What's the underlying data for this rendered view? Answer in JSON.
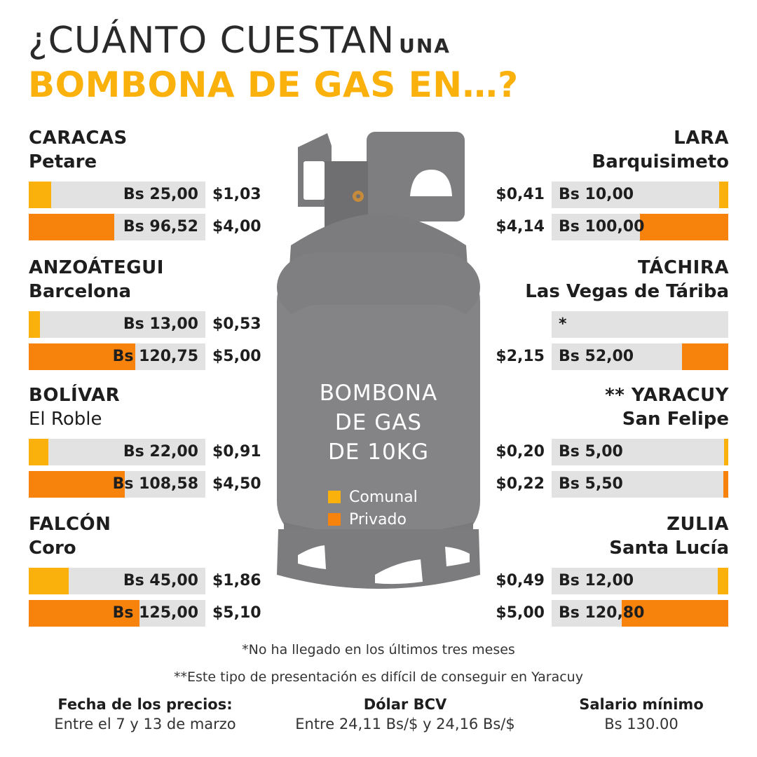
{
  "title": {
    "line1_main": "¿CUÁNTO CUESTAN",
    "line1_small": "UNA",
    "line2": "BOMBONA DE GAS EN…?"
  },
  "cylinder": {
    "text": [
      "BOMBONA",
      "DE GAS",
      "DE 10KG"
    ],
    "legend": [
      {
        "label": "Comunal",
        "color": "#fbb10b"
      },
      {
        "label": "Privado",
        "color": "#f7820c"
      }
    ]
  },
  "colors": {
    "comunal": "#fbb10b",
    "privado": "#f7820c",
    "bar_bg": "#e2e2e2",
    "cylinder": "#848486"
  },
  "chart_data": {
    "type": "bar",
    "unit_primary": "Bs",
    "unit_secondary": "$",
    "series_names": [
      "Comunal",
      "Privado"
    ],
    "regions": [
      {
        "side": "left",
        "state": "CARACAS",
        "city": "Petare",
        "comunal": {
          "bs": 25.0,
          "bs_label": "Bs 25,00",
          "usd_label": "$1,03"
        },
        "privado": {
          "bs": 96.52,
          "bs_label": "Bs 96,52",
          "usd_label": "$4,00"
        }
      },
      {
        "side": "left",
        "state": "ANZOÁTEGUI",
        "city": "Barcelona",
        "comunal": {
          "bs": 13.0,
          "bs_label": "Bs 13,00",
          "usd_label": "$0,53"
        },
        "privado": {
          "bs": 120.75,
          "bs_label": "Bs 120,75",
          "usd_label": "$5,00"
        }
      },
      {
        "side": "left",
        "state": "BOLÍVAR",
        "city": "El Roble",
        "comunal": {
          "bs": 22.0,
          "bs_label": "Bs 22,00",
          "usd_label": "$0,91"
        },
        "privado": {
          "bs": 108.58,
          "bs_label": "Bs 108,58",
          "usd_label": "$4,50"
        }
      },
      {
        "side": "left",
        "state": "FALCÓN",
        "city": "Coro",
        "comunal": {
          "bs": 45.0,
          "bs_label": "Bs 45,00",
          "usd_label": "$1,86"
        },
        "privado": {
          "bs": 125.0,
          "bs_label": "Bs 125,00",
          "usd_label": "$5,10"
        }
      },
      {
        "side": "right",
        "state": "LARA",
        "city": "Barquisimeto",
        "comunal": {
          "bs": 10.0,
          "bs_label": "Bs 10,00",
          "usd_label": "$0,41"
        },
        "privado": {
          "bs": 100.0,
          "bs_label": "Bs 100,00",
          "usd_label": "$4,14"
        }
      },
      {
        "side": "right",
        "state": "TÁCHIRA",
        "city": "Las Vegas de Táriba",
        "comunal": {
          "bs": null,
          "bs_label": "*",
          "usd_label": ""
        },
        "privado": {
          "bs": 52.0,
          "bs_label": "Bs 52,00",
          "usd_label": "$2,15"
        }
      },
      {
        "side": "right",
        "state": "** YARACUY",
        "city": "San Felipe",
        "comunal": {
          "bs": 5.0,
          "bs_label": "Bs 5,00",
          "usd_label": "$0,20"
        },
        "privado": {
          "bs": 5.5,
          "bs_label": "Bs 5,50",
          "usd_label": "$0,22"
        }
      },
      {
        "side": "right",
        "state": "ZULIA",
        "city": "Santa Lucía",
        "comunal": {
          "bs": 12.0,
          "bs_label": "Bs 12,00",
          "usd_label": "$0,49"
        },
        "privado": {
          "bs": 120.8,
          "bs_label": "Bs 120,80",
          "usd_label": "$5,00"
        }
      }
    ]
  },
  "notes": {
    "n1": "*No ha llegado en los últimos tres meses",
    "n2": "**Este tipo de presentación es difícil de conseguir en Yaracuy"
  },
  "footer": {
    "fecha_label": "Fecha de los precios:",
    "fecha_value": "Entre el 7 y 13 de marzo",
    "dolar_label": "Dólar BCV",
    "dolar_value": "Entre 24,11 Bs/$ y 24,16 Bs/$",
    "salario_label": "Salario mínimo",
    "salario_value": "Bs 130.00"
  }
}
